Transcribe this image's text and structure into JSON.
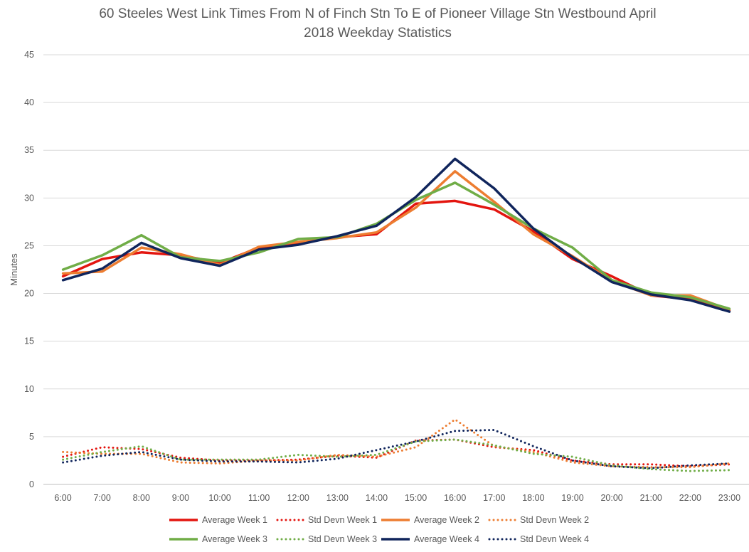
{
  "chart_data": {
    "type": "line",
    "title_line1": "60 Steeles West Link Times From N of Finch Stn To E of Pioneer Village Stn Westbound April",
    "title_line2": "2018 Weekday Statistics",
    "ylabel": "Minutes",
    "xlabel": "",
    "ylim": [
      0,
      45
    ],
    "yticks": [
      0,
      5,
      10,
      15,
      20,
      25,
      30,
      35,
      40,
      45
    ],
    "grid": true,
    "legend_position": "bottom",
    "categories": [
      "6:00",
      "7:00",
      "8:00",
      "9:00",
      "10:00",
      "11:00",
      "12:00",
      "13:00",
      "14:00",
      "15:00",
      "16:00",
      "17:00",
      "18:00",
      "19:00",
      "20:00",
      "21:00",
      "22:00",
      "23:00"
    ],
    "series": [
      {
        "name": "Average Week 1",
        "style": "solid",
        "color": "#e3150f",
        "values": [
          21.8,
          23.6,
          24.3,
          24.0,
          23.2,
          24.8,
          25.3,
          25.9,
          26.2,
          29.4,
          29.7,
          28.8,
          26.5,
          23.6,
          21.8,
          19.8,
          19.4,
          18.2
        ]
      },
      {
        "name": "Std Devn Week 1",
        "style": "dotted",
        "color": "#e3150f",
        "values": [
          2.9,
          3.9,
          3.7,
          2.8,
          2.5,
          2.5,
          2.6,
          3.0,
          2.8,
          4.6,
          4.7,
          3.9,
          3.6,
          2.5,
          2.1,
          2.1,
          1.9,
          2.1
        ]
      },
      {
        "name": "Average Week 2",
        "style": "solid",
        "color": "#ed7d31",
        "values": [
          22.1,
          22.3,
          24.8,
          24.1,
          23.0,
          24.9,
          25.4,
          25.8,
          26.4,
          29.0,
          32.8,
          29.6,
          26.2,
          23.9,
          21.3,
          19.8,
          19.8,
          18.3
        ]
      },
      {
        "name": "Std Devn Week 2",
        "style": "dotted",
        "color": "#ed7d31",
        "values": [
          3.4,
          3.2,
          3.2,
          2.3,
          2.2,
          2.5,
          2.5,
          3.1,
          2.9,
          3.9,
          6.8,
          4.0,
          3.4,
          2.3,
          1.9,
          1.8,
          1.8,
          2.2
        ]
      },
      {
        "name": "Average Week 3",
        "style": "solid",
        "color": "#70ad47",
        "values": [
          22.5,
          24.0,
          26.1,
          23.8,
          23.4,
          24.3,
          25.7,
          25.9,
          27.3,
          29.8,
          31.6,
          29.3,
          26.8,
          24.8,
          21.4,
          20.1,
          19.6,
          18.4
        ]
      },
      {
        "name": "Std Devn Week 3",
        "style": "dotted",
        "color": "#70ad47",
        "values": [
          2.6,
          3.4,
          4.0,
          2.6,
          2.6,
          2.6,
          3.1,
          2.9,
          3.1,
          4.5,
          4.7,
          4.1,
          3.2,
          2.9,
          2.0,
          1.6,
          1.4,
          1.5
        ]
      },
      {
        "name": "Average Week 4",
        "style": "solid",
        "color": "#10255c",
        "values": [
          21.4,
          22.6,
          25.3,
          23.7,
          22.9,
          24.6,
          25.1,
          26.0,
          27.1,
          30.1,
          34.1,
          31.0,
          26.8,
          23.8,
          21.2,
          19.9,
          19.3,
          18.1
        ]
      },
      {
        "name": "Std Devn Week 4",
        "style": "dotted",
        "color": "#10255c",
        "values": [
          2.3,
          3.0,
          3.4,
          2.6,
          2.4,
          2.4,
          2.3,
          2.7,
          3.6,
          4.5,
          5.6,
          5.7,
          4.0,
          2.5,
          1.9,
          1.7,
          2.0,
          2.2
        ]
      }
    ]
  },
  "colors": {
    "gridline": "#d9d9d9",
    "axis": "#bfbfbf",
    "text": "#595959"
  }
}
